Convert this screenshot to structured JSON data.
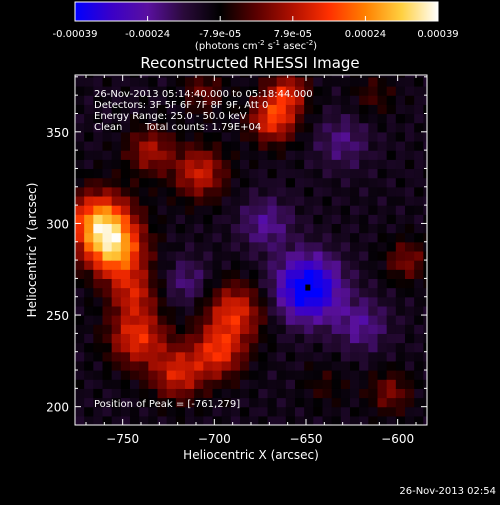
{
  "colorbar": {
    "tick_labels": [
      "-0.00039",
      "-0.00024",
      "-7.9e-05",
      "7.9e-05",
      "0.00024",
      "0.00039"
    ],
    "units_prefix": "(photons cm",
    "units_exp1": "-2",
    "units_mid": " s",
    "units_exp2": "-1",
    "units_mid2": " asec",
    "units_exp3": "-2",
    "units_suffix": ")",
    "colors": [
      "#0000ff",
      "#3a00c8",
      "#5a10a0",
      "#2a0a3a",
      "#000000",
      "#5a0000",
      "#b01000",
      "#ff3000",
      "#ff8000",
      "#ffd040",
      "#ffffff"
    ]
  },
  "chart_data": {
    "type": "heatmap",
    "title": "Reconstructed RHESSI Image",
    "xlabel": "Heliocentric X (arcsec)",
    "ylabel": "Heliocentric Y (arcsec)",
    "xlim": [
      -776,
      -584
    ],
    "ylim": [
      190,
      381
    ],
    "xticks": [
      -750,
      -700,
      -650,
      -600
    ],
    "yticks": [
      200,
      250,
      300,
      350
    ],
    "colorbar_range": [
      -0.00039,
      0.00039
    ],
    "annotations": [
      "26-Nov-2013 05:14:40.000 to 05:18:44.000",
      "Detectors: 3F 5F 6F 7F 8F 9F, Att 0",
      "Energy Range: 25.0 - 50.0 keV",
      "Clean",
      "Total counts: 1.79E+04"
    ],
    "peak_label": "Position of Peak = [-761,279]",
    "peak_position": [
      -761,
      279
    ],
    "min_marker_position": [
      -649,
      265
    ],
    "sources": [
      {
        "x": -762,
        "y": 300,
        "amp": 1.0,
        "sigma": 12
      },
      {
        "x": -753,
        "y": 284,
        "amp": 0.75,
        "sigma": 11
      },
      {
        "x": -708,
        "y": 328,
        "amp": 0.55,
        "sigma": 10
      },
      {
        "x": -735,
        "y": 340,
        "amp": 0.45,
        "sigma": 9
      },
      {
        "x": -689,
        "y": 252,
        "amp": 0.6,
        "sigma": 11
      },
      {
        "x": -698,
        "y": 230,
        "amp": 0.6,
        "sigma": 10
      },
      {
        "x": -742,
        "y": 238,
        "amp": 0.62,
        "sigma": 11
      },
      {
        "x": -720,
        "y": 218,
        "amp": 0.55,
        "sigma": 10
      },
      {
        "x": -744,
        "y": 262,
        "amp": 0.45,
        "sigma": 9
      },
      {
        "x": -668,
        "y": 357,
        "amp": 0.65,
        "sigma": 9
      },
      {
        "x": -660,
        "y": 372,
        "amp": 0.5,
        "sigma": 8
      },
      {
        "x": -706,
        "y": 372,
        "amp": 0.3,
        "sigma": 8
      },
      {
        "x": -613,
        "y": 370,
        "amp": 0.2,
        "sigma": 8
      },
      {
        "x": -595,
        "y": 280,
        "amp": 0.35,
        "sigma": 8
      },
      {
        "x": -604,
        "y": 208,
        "amp": 0.35,
        "sigma": 8
      },
      {
        "x": -640,
        "y": 212,
        "amp": 0.15,
        "sigma": 8
      },
      {
        "x": -649,
        "y": 265,
        "amp": -0.85,
        "sigma": 12
      },
      {
        "x": -672,
        "y": 300,
        "amp": -0.3,
        "sigma": 10
      },
      {
        "x": -620,
        "y": 245,
        "amp": -0.3,
        "sigma": 10
      },
      {
        "x": -630,
        "y": 345,
        "amp": -0.25,
        "sigma": 10
      },
      {
        "x": -715,
        "y": 268,
        "amp": -0.25,
        "sigma": 9
      }
    ]
  },
  "footer": {
    "timestamp": "26-Nov-2013 02:54"
  }
}
